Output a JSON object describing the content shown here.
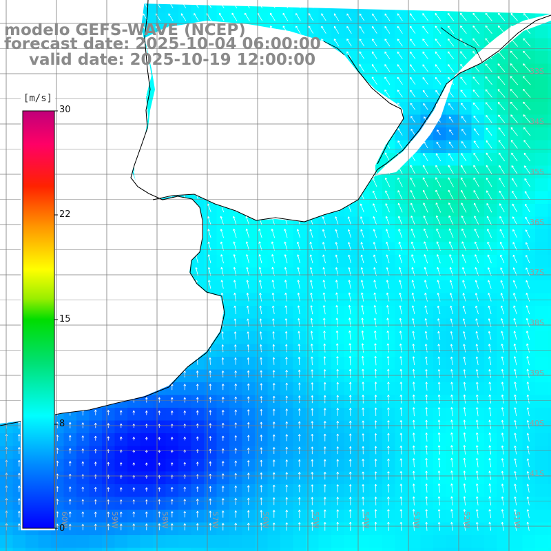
{
  "header": {
    "model_line": "modelo GEFS-WAVE (NCEP)",
    "forecast_line": "forecast date: 2025-10-04 06:00:00",
    "valid_line": "valid date: 2025-10-19 12:00:00"
  },
  "colorbar": {
    "unit": "[m/s]",
    "ticks": [
      "30",
      "22",
      "15",
      "8",
      "0"
    ],
    "tick_values": [
      30,
      22,
      15,
      8,
      0
    ],
    "colors": [
      "#0000ff",
      "#00aaff",
      "#00ffff",
      "#00ff00",
      "#ffff00",
      "#ff8000",
      "#ff0000",
      "#ff0099",
      "#cc0077"
    ]
  },
  "map": {
    "lat_labels": [
      "33S",
      "34S",
      "35S",
      "36S",
      "37S",
      "38S",
      "39S",
      "40S",
      "41S"
    ],
    "lon_labels": [
      "60W",
      "59W",
      "58W",
      "57W",
      "56W",
      "55W",
      "54W",
      "53W",
      "52W",
      "51W"
    ],
    "land_color": "#ffffff",
    "grid_color": "#7a7a7a",
    "coast_color": "#000000",
    "arrow_color": "#ffffff"
  }
}
